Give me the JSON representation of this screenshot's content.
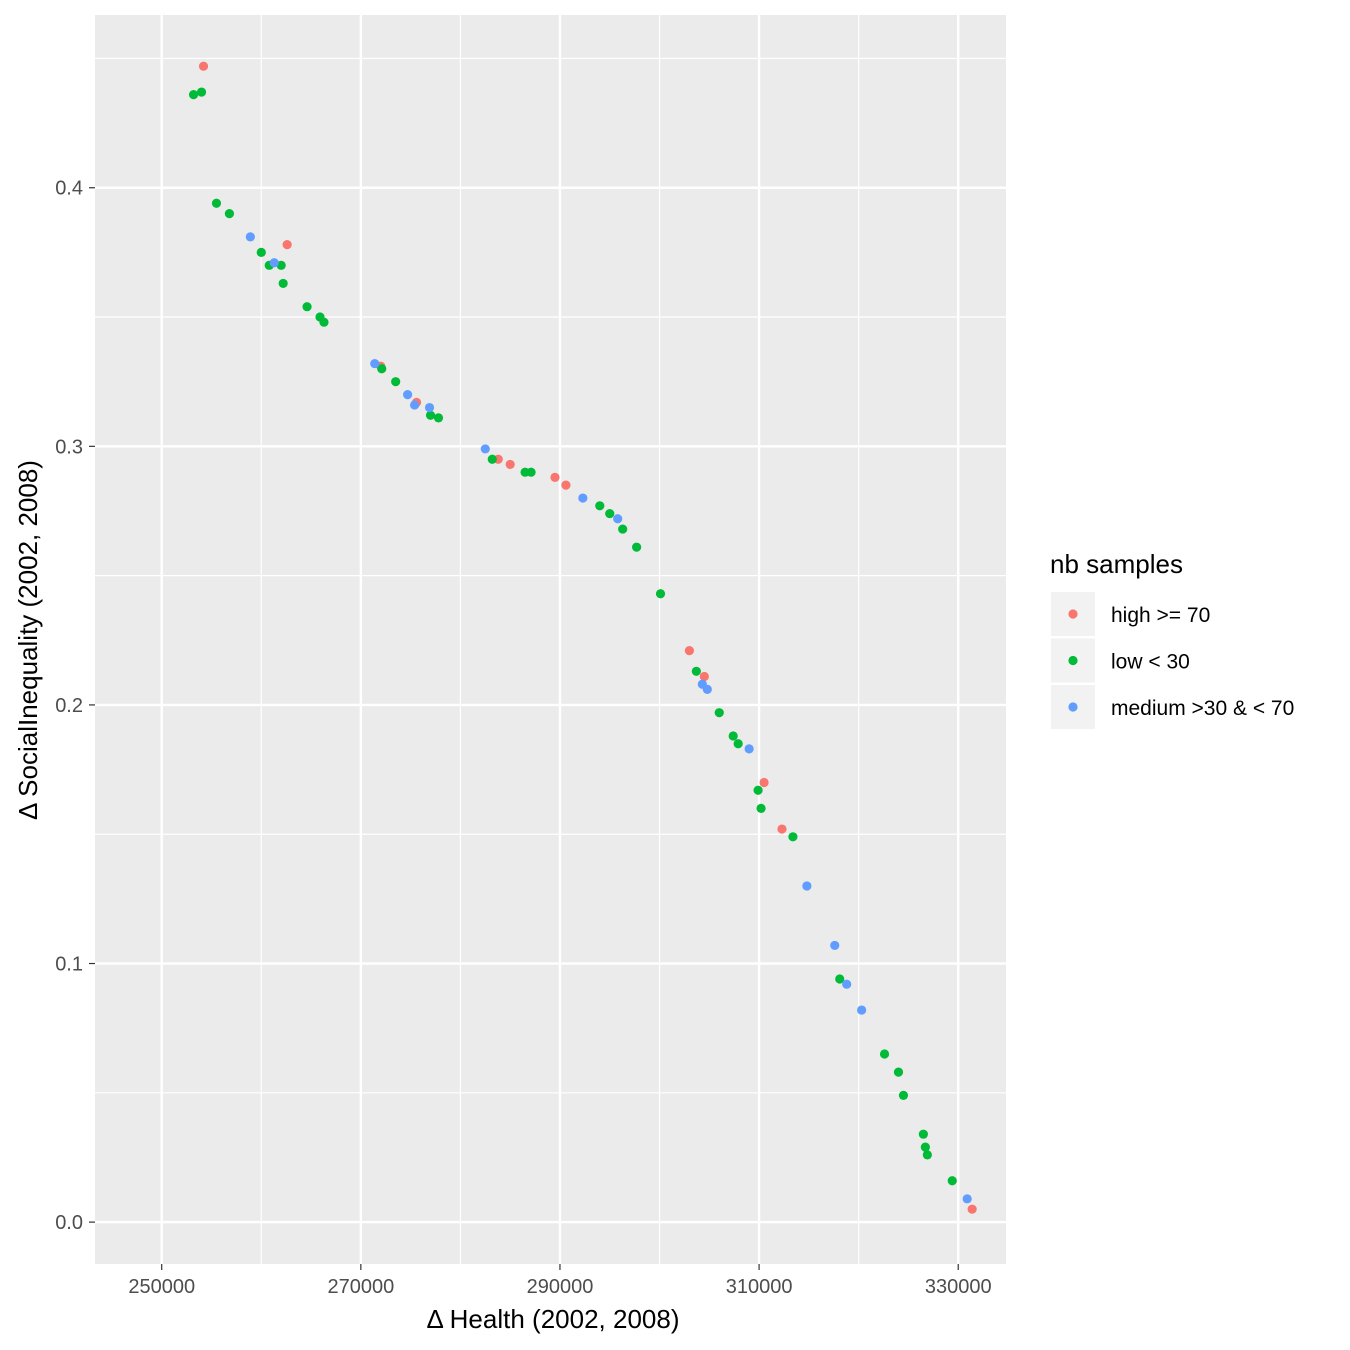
{
  "chart_data": {
    "type": "scatter",
    "xlabel": "Δ Health (2002, 2008)",
    "ylabel": "Δ SocialInequality (2002, 2008)",
    "xlim": [
      243300,
      334800
    ],
    "ylim": [
      -0.0162,
      0.4668
    ],
    "x_ticks": [
      250000,
      270000,
      290000,
      310000,
      330000
    ],
    "x_tick_labels": [
      "250000",
      "270000",
      "290000",
      "310000",
      "330000"
    ],
    "y_ticks": [
      0.0,
      0.1,
      0.2,
      0.3,
      0.4
    ],
    "y_tick_labels": [
      "0.0",
      "0.1",
      "0.2",
      "0.3",
      "0.4"
    ],
    "grid": true,
    "panel_background": "#ebebeb",
    "legend": {
      "title": "nb samples",
      "position": "right"
    },
    "series": [
      {
        "name": "high >= 70",
        "color": "#f8766d",
        "points": [
          [
            254200,
            0.447
          ],
          [
            262600,
            0.378
          ],
          [
            272000,
            0.331
          ],
          [
            275600,
            0.317
          ],
          [
            283800,
            0.295
          ],
          [
            285000,
            0.293
          ],
          [
            289500,
            0.288
          ],
          [
            290600,
            0.285
          ],
          [
            303000,
            0.221
          ],
          [
            304500,
            0.211
          ],
          [
            310500,
            0.17
          ],
          [
            312300,
            0.152
          ],
          [
            331400,
            0.005
          ]
        ]
      },
      {
        "name": "low < 30",
        "color": "#00ba38",
        "points": [
          [
            253200,
            0.436
          ],
          [
            254000,
            0.437
          ],
          [
            255500,
            0.394
          ],
          [
            256800,
            0.39
          ],
          [
            260000,
            0.375
          ],
          [
            260800,
            0.37
          ],
          [
            262000,
            0.37
          ],
          [
            262200,
            0.363
          ],
          [
            264600,
            0.354
          ],
          [
            265900,
            0.35
          ],
          [
            266300,
            0.348
          ],
          [
            272100,
            0.33
          ],
          [
            273500,
            0.325
          ],
          [
            277000,
            0.312
          ],
          [
            277800,
            0.311
          ],
          [
            283200,
            0.295
          ],
          [
            286500,
            0.29
          ],
          [
            287100,
            0.29
          ],
          [
            294000,
            0.277
          ],
          [
            295000,
            0.274
          ],
          [
            296300,
            0.268
          ],
          [
            297700,
            0.261
          ],
          [
            300100,
            0.243
          ],
          [
            303700,
            0.213
          ],
          [
            306000,
            0.197
          ],
          [
            307400,
            0.188
          ],
          [
            307900,
            0.185
          ],
          [
            309900,
            0.167
          ],
          [
            310200,
            0.16
          ],
          [
            313400,
            0.149
          ],
          [
            318100,
            0.094
          ],
          [
            322600,
            0.065
          ],
          [
            324000,
            0.058
          ],
          [
            324500,
            0.049
          ],
          [
            326500,
            0.034
          ],
          [
            326700,
            0.029
          ],
          [
            326900,
            0.026
          ],
          [
            329400,
            0.016
          ]
        ]
      },
      {
        "name": "medium >30 & < 70",
        "color": "#619cff",
        "points": [
          [
            258900,
            0.381
          ],
          [
            261300,
            0.371
          ],
          [
            271400,
            0.332
          ],
          [
            274700,
            0.32
          ],
          [
            275400,
            0.316
          ],
          [
            276900,
            0.315
          ],
          [
            282500,
            0.299
          ],
          [
            292300,
            0.28
          ],
          [
            295800,
            0.272
          ],
          [
            304300,
            0.208
          ],
          [
            304800,
            0.206
          ],
          [
            309000,
            0.183
          ],
          [
            314800,
            0.13
          ],
          [
            317600,
            0.107
          ],
          [
            318800,
            0.092
          ],
          [
            320300,
            0.082
          ],
          [
            330900,
            0.009
          ]
        ]
      }
    ]
  }
}
